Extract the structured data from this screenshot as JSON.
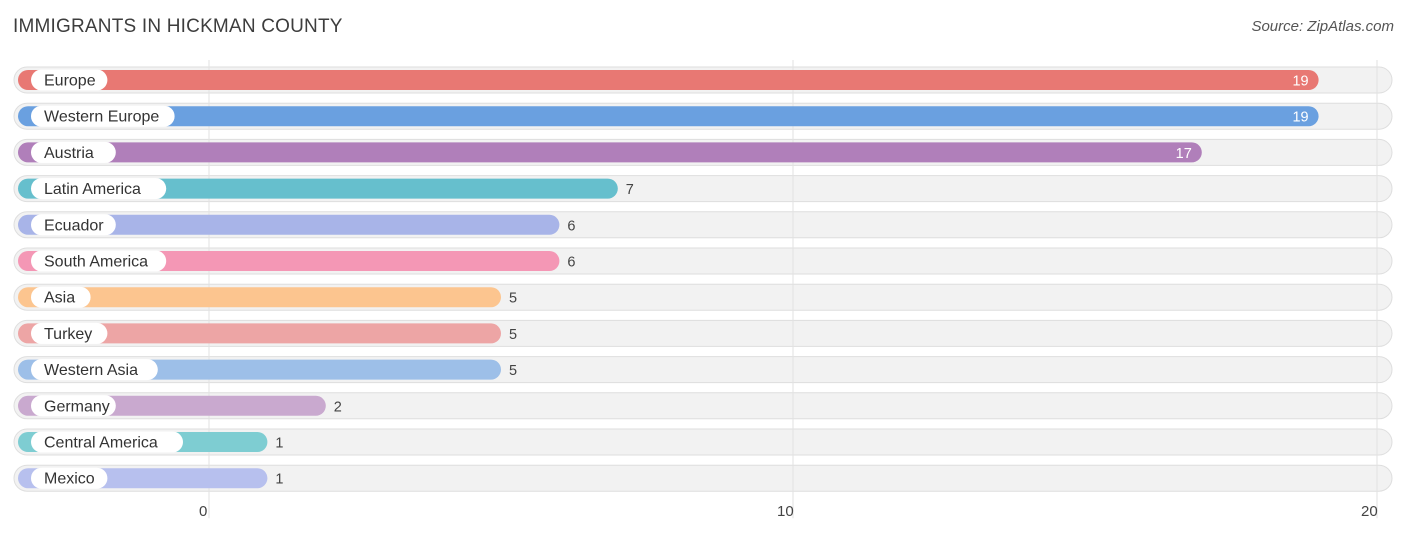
{
  "header": {
    "title": "IMMIGRANTS IN HICKMAN COUNTY",
    "source": "Source: ZipAtlas.com"
  },
  "chart_data": {
    "type": "bar",
    "orientation": "horizontal",
    "title": "IMMIGRANTS IN HICKMAN COUNTY",
    "categories": [
      "Europe",
      "Western Europe",
      "Austria",
      "Latin America",
      "Ecuador",
      "South America",
      "Asia",
      "Turkey",
      "Western Asia",
      "Germany",
      "Central America",
      "Mexico"
    ],
    "values": [
      19,
      19,
      17,
      7,
      6,
      6,
      5,
      5,
      5,
      2,
      1,
      1
    ],
    "colors": [
      "#e87873",
      "#6aa0e0",
      "#b07fba",
      "#66bfcd",
      "#a8b4e8",
      "#f497b5",
      "#fcc58f",
      "#eda5a5",
      "#9dbfe8",
      "#c9a9cf",
      "#7ecdd2",
      "#b7c0ee"
    ],
    "xlim": [
      0,
      20
    ],
    "xticks": [
      0,
      10,
      20
    ],
    "grid": true
  }
}
